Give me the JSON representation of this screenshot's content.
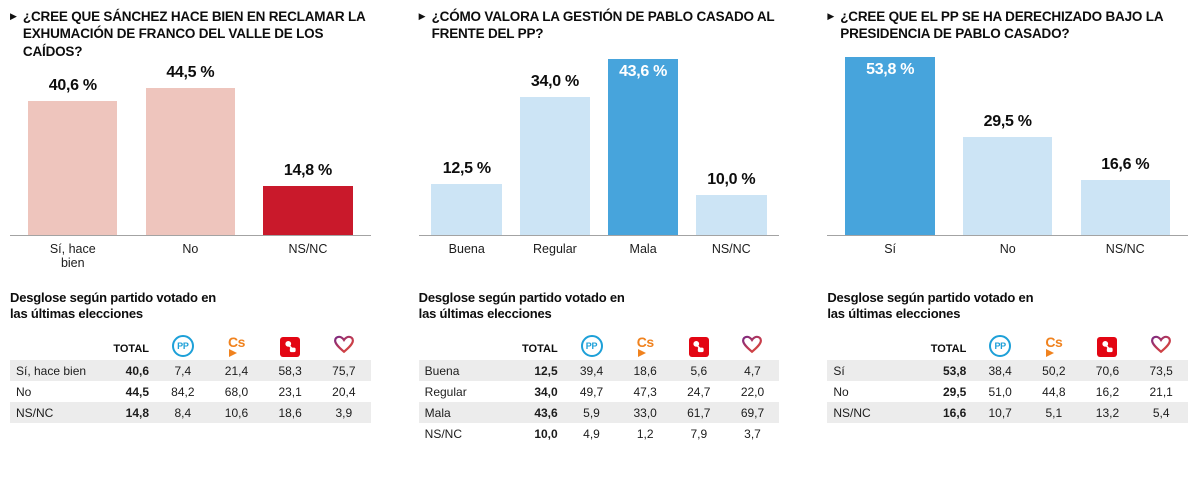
{
  "page": {
    "background": "#ffffff"
  },
  "colors": {
    "pink_bar": "#eec5bd",
    "red_bar": "#c9192b",
    "light_blue_bar": "#cce4f5",
    "dark_blue_bar": "#47a4dc",
    "row_stripe": "#ececec",
    "pp_blue": "#1da0d8",
    "cs_orange": "#f0821e",
    "psoe_red": "#e30613",
    "up_gradient_start": "#7b2982",
    "up_gradient_end": "#e04b35"
  },
  "chart_data": [
    {
      "type": "bar",
      "title": "¿CREE QUE SÁNCHEZ HACE BIEN EN RECLAMAR LA EXHUMACIÓN DE FRANCO DEL VALLE DE LOS CAÍDOS?",
      "categories": [
        "Sí, hace\nbien",
        "No",
        "NS/NC"
      ],
      "values": [
        40.6,
        44.5,
        14.8
      ],
      "value_labels": [
        "40,6 %",
        "44,5 %",
        "14,8 %"
      ],
      "bar_colors": [
        "#eec5bd",
        "#eec5bd",
        "#c9192b"
      ],
      "label_inside": [
        false,
        false,
        false
      ],
      "ylim": [
        0,
        55
      ],
      "grid": false,
      "legend": false,
      "breakdown": {
        "heading": "Desglose según partido votado en las últimas elecciones",
        "columns": [
          "TOTAL",
          "PP",
          "Cs",
          "PSOE",
          "Unidas Podemos"
        ],
        "rows": [
          {
            "label": "Sí, hace bien",
            "values": [
              "40,6",
              "7,4",
              "21,4",
              "58,3",
              "75,7"
            ]
          },
          {
            "label": "No",
            "values": [
              "44,5",
              "84,2",
              "68,0",
              "23,1",
              "20,4"
            ]
          },
          {
            "label": "NS/NC",
            "values": [
              "14,8",
              "8,4",
              "10,6",
              "18,6",
              "3,9"
            ]
          }
        ]
      }
    },
    {
      "type": "bar",
      "title": "¿CÓMO VALORA LA GESTIÓN DE PABLO CASADO AL FRENTE DEL PP?",
      "categories": [
        "Buena",
        "Regular",
        "Mala",
        "NS/NC"
      ],
      "values": [
        12.5,
        34.0,
        43.6,
        10.0
      ],
      "value_labels": [
        "12,5 %",
        "34,0 %",
        "43,6 %",
        "10,0 %"
      ],
      "bar_colors": [
        "#cce4f5",
        "#cce4f5",
        "#47a4dc",
        "#cce4f5"
      ],
      "label_inside": [
        false,
        false,
        true,
        false
      ],
      "ylim": [
        0,
        45
      ],
      "grid": false,
      "legend": false,
      "breakdown": {
        "heading": "Desglose según partido votado en las últimas elecciones",
        "columns": [
          "TOTAL",
          "PP",
          "Cs",
          "PSOE",
          "Unidas Podemos"
        ],
        "rows": [
          {
            "label": "Buena",
            "values": [
              "12,5",
              "39,4",
              "18,6",
              "5,6",
              "4,7"
            ]
          },
          {
            "label": "Regular",
            "values": [
              "34,0",
              "49,7",
              "47,3",
              "24,7",
              "22,0"
            ]
          },
          {
            "label": "Mala",
            "values": [
              "43,6",
              "5,9",
              "33,0",
              "61,7",
              "69,7"
            ]
          },
          {
            "label": "NS/NC",
            "values": [
              "10,0",
              "4,9",
              "1,2",
              "7,9",
              "3,7"
            ]
          }
        ]
      }
    },
    {
      "type": "bar",
      "title": "¿CREE QUE EL PP SE HA DERECHIZADO BAJO LA PRESIDENCIA DE PABLO CASADO?",
      "categories": [
        "Sí",
        "No",
        "NS/NC"
      ],
      "values": [
        53.8,
        29.5,
        16.6
      ],
      "value_labels": [
        "53,8 %",
        "29,5 %",
        "16,6 %"
      ],
      "bar_colors": [
        "#47a4dc",
        "#cce4f5",
        "#cce4f5"
      ],
      "label_inside": [
        true,
        false,
        false
      ],
      "ylim": [
        0,
        55
      ],
      "grid": false,
      "legend": false,
      "breakdown": {
        "heading": "Desglose según partido votado en las últimas elecciones",
        "columns": [
          "TOTAL",
          "PP",
          "Cs",
          "PSOE",
          "Unidas Podemos"
        ],
        "rows": [
          {
            "label": "Sí",
            "values": [
              "53,8",
              "38,4",
              "50,2",
              "70,6",
              "73,5"
            ]
          },
          {
            "label": "No",
            "values": [
              "29,5",
              "51,0",
              "44,8",
              "16,2",
              "21,1"
            ]
          },
          {
            "label": "NS/NC",
            "values": [
              "16,6",
              "10,7",
              "5,1",
              "13,2",
              "5,4"
            ]
          }
        ]
      }
    }
  ]
}
